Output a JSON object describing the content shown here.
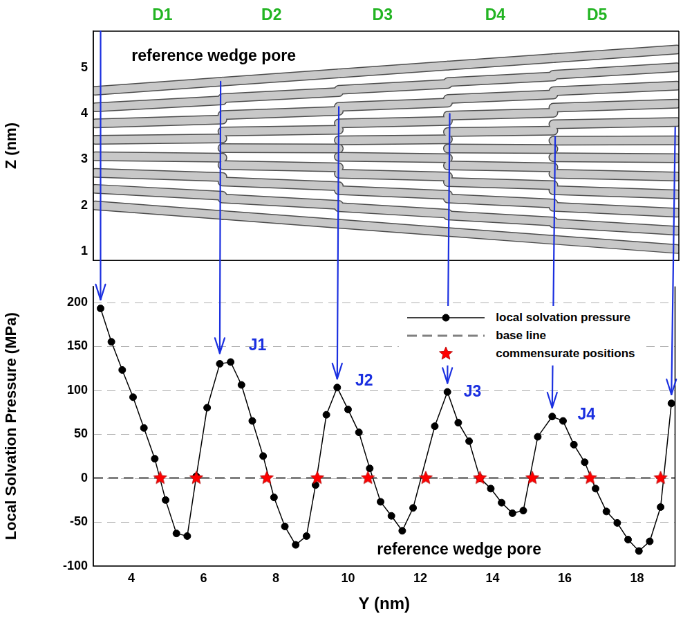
{
  "chart_data": [
    {
      "type": "line",
      "ylabel": "Z (nm)",
      "xlim": [
        2.95,
        19.05
      ],
      "ylim": [
        0.8,
        5.8
      ],
      "yticks": [
        1,
        2,
        3,
        4,
        5
      ],
      "tick_labels": "y",
      "color": "#c8c8c8",
      "annotations": [
        {
          "text": "reference wedge pore",
          "x": 4.0,
          "y": 5.25,
          "color": "#000000"
        }
      ],
      "domain_labels": [
        {
          "text": "D1",
          "x": 4.85,
          "color": "#22b422"
        },
        {
          "text": "D2",
          "x": 7.85,
          "color": "#22b422"
        },
        {
          "text": "D3",
          "x": 10.9,
          "color": "#22b422"
        },
        {
          "text": "D4",
          "x": 14.0,
          "color": "#22b422"
        },
        {
          "text": "D5",
          "x": 16.8,
          "color": "#22b422"
        }
      ],
      "series": [
        {
          "x": [
            3.0,
            6.5
          ],
          "values": [
            2.0,
            1.79
          ]
        },
        {
          "x": [
            3.0,
            6.5
          ],
          "values": [
            2.36,
            2.21
          ]
        },
        {
          "x": [
            3.0,
            6.5
          ],
          "values": [
            2.71,
            2.62
          ]
        },
        {
          "x": [
            3.0,
            6.5
          ],
          "values": [
            3.07,
            3.04
          ]
        },
        {
          "x": [
            3.0,
            6.5
          ],
          "values": [
            3.43,
            3.46
          ]
        },
        {
          "x": [
            3.0,
            6.5
          ],
          "values": [
            3.79,
            3.87
          ]
        },
        {
          "x": [
            3.0,
            6.5
          ],
          "values": [
            4.14,
            4.29
          ]
        },
        {
          "x": [
            3.0,
            6.5
          ],
          "values": [
            4.5,
            4.7
          ]
        },
        {
          "x": [
            6.5,
            9.7
          ],
          "values": [
            1.79,
            1.6
          ]
        },
        {
          "x": [
            6.5,
            9.7
          ],
          "values": [
            2.15,
            2.01
          ]
        },
        {
          "x": [
            6.5,
            9.7
          ],
          "values": [
            2.52,
            2.42
          ]
        },
        {
          "x": [
            6.5,
            9.7
          ],
          "values": [
            2.88,
            2.83
          ]
        },
        {
          "x": [
            6.5,
            9.7
          ],
          "values": [
            3.25,
            3.24
          ]
        },
        {
          "x": [
            6.5,
            9.7
          ],
          "values": [
            3.61,
            3.65
          ]
        },
        {
          "x": [
            6.5,
            9.7
          ],
          "values": [
            3.97,
            4.06
          ]
        },
        {
          "x": [
            6.5,
            9.7
          ],
          "values": [
            4.34,
            4.47
          ]
        },
        {
          "x": [
            6.5,
            9.7
          ],
          "values": [
            4.7,
            4.88
          ]
        },
        {
          "x": [
            9.7,
            12.7
          ],
          "values": [
            1.6,
            1.42
          ]
        },
        {
          "x": [
            9.7,
            12.7
          ],
          "values": [
            1.96,
            1.82
          ]
        },
        {
          "x": [
            9.7,
            12.7
          ],
          "values": [
            2.33,
            2.23
          ]
        },
        {
          "x": [
            9.7,
            12.7
          ],
          "values": [
            2.69,
            2.63
          ]
        },
        {
          "x": [
            9.7,
            12.7
          ],
          "values": [
            3.06,
            3.03
          ]
        },
        {
          "x": [
            9.7,
            12.7
          ],
          "values": [
            3.42,
            3.44
          ]
        },
        {
          "x": [
            9.7,
            12.7
          ],
          "values": [
            3.79,
            3.84
          ]
        },
        {
          "x": [
            9.7,
            12.7
          ],
          "values": [
            4.15,
            4.24
          ]
        },
        {
          "x": [
            9.7,
            12.7
          ],
          "values": [
            4.52,
            4.65
          ]
        },
        {
          "x": [
            9.7,
            12.7
          ],
          "values": [
            4.88,
            5.05
          ]
        },
        {
          "x": [
            12.7,
            15.6
          ],
          "values": [
            1.42,
            1.25
          ]
        },
        {
          "x": [
            12.7,
            15.6
          ],
          "values": [
            1.78,
            1.65
          ]
        },
        {
          "x": [
            12.7,
            15.6
          ],
          "values": [
            2.15,
            2.04
          ]
        },
        {
          "x": [
            12.7,
            15.6
          ],
          "values": [
            2.51,
            2.44
          ]
        },
        {
          "x": [
            12.7,
            15.6
          ],
          "values": [
            2.87,
            2.83
          ]
        },
        {
          "x": [
            12.7,
            15.6
          ],
          "values": [
            3.24,
            3.23
          ]
        },
        {
          "x": [
            12.7,
            15.6
          ],
          "values": [
            3.6,
            3.63
          ]
        },
        {
          "x": [
            12.7,
            15.6
          ],
          "values": [
            3.96,
            4.02
          ]
        },
        {
          "x": [
            12.7,
            15.6
          ],
          "values": [
            4.32,
            4.42
          ]
        },
        {
          "x": [
            12.7,
            15.6
          ],
          "values": [
            4.69,
            4.81
          ]
        },
        {
          "x": [
            12.7,
            15.6
          ],
          "values": [
            5.05,
            5.21
          ]
        },
        {
          "x": [
            15.6,
            19.0
          ],
          "values": [
            1.25,
            1.05
          ]
        },
        {
          "x": [
            15.6,
            19.0
          ],
          "values": [
            1.61,
            1.45
          ]
        },
        {
          "x": [
            15.6,
            19.0
          ],
          "values": [
            1.97,
            1.84
          ]
        },
        {
          "x": [
            15.6,
            19.0
          ],
          "values": [
            2.33,
            2.24
          ]
        },
        {
          "x": [
            15.6,
            19.0
          ],
          "values": [
            2.69,
            2.63
          ]
        },
        {
          "x": [
            15.6,
            19.0
          ],
          "values": [
            3.05,
            3.03
          ]
        },
        {
          "x": [
            15.6,
            19.0
          ],
          "values": [
            3.41,
            3.42
          ]
        },
        {
          "x": [
            15.6,
            19.0
          ],
          "values": [
            3.77,
            3.82
          ]
        },
        {
          "x": [
            15.6,
            19.0
          ],
          "values": [
            4.13,
            4.22
          ]
        },
        {
          "x": [
            15.6,
            19.0
          ],
          "values": [
            4.49,
            4.61
          ]
        },
        {
          "x": [
            15.6,
            19.0
          ],
          "values": [
            4.85,
            5.01
          ]
        },
        {
          "x": [
            15.6,
            19.0
          ],
          "values": [
            5.21,
            5.4
          ]
        }
      ]
    },
    {
      "type": "line",
      "xlabel": "Y (nm)",
      "ylabel": "Local Solvation Pressure (MPa)",
      "xlim": [
        2.95,
        19.05
      ],
      "ylim": [
        -100,
        218
      ],
      "xticks": [
        4,
        6,
        8,
        10,
        12,
        14,
        16,
        18
      ],
      "yticks": [
        -100,
        -50,
        0,
        50,
        100,
        150,
        200
      ],
      "grid": true,
      "legend": "upper right",
      "annotations": [
        {
          "text": "J1",
          "x": 7.25,
          "y": 150,
          "color": "#1a2fe0"
        },
        {
          "text": "J2",
          "x": 10.2,
          "y": 110,
          "color": "#1a2fe0"
        },
        {
          "text": "J3",
          "x": 13.2,
          "y": 98,
          "color": "#1a2fe0"
        },
        {
          "text": "J4",
          "x": 16.35,
          "y": 72,
          "color": "#1a2fe0"
        },
        {
          "text": "reference wedge pore",
          "x": 10.8,
          "y": -82,
          "color": "#000000"
        }
      ],
      "series": [
        {
          "name": "local solvation pressure",
          "color": "#000000",
          "marker": "circle",
          "line_style": "solid",
          "x": [
            3.15,
            3.45,
            3.75,
            4.05,
            4.35,
            4.65,
            4.95,
            5.25,
            5.55,
            5.8,
            6.1,
            6.45,
            6.75,
            7.05,
            7.35,
            7.65,
            7.95,
            8.25,
            8.55,
            8.85,
            9.1,
            9.4,
            9.7,
            10.0,
            10.3,
            10.6,
            10.9,
            11.2,
            11.5,
            11.8,
            12.4,
            12.75,
            13.05,
            13.35,
            13.65,
            13.95,
            14.25,
            14.55,
            14.85,
            15.25,
            15.65,
            15.95,
            16.25,
            16.55,
            16.85,
            17.15,
            17.45,
            17.75,
            18.05,
            18.35,
            18.65,
            18.95
          ],
          "values": [
            193,
            155,
            123,
            92,
            57,
            22,
            -25,
            -63,
            -66,
            2,
            80,
            130,
            132,
            106,
            65,
            25,
            -22,
            -55,
            -76,
            -66,
            -8,
            72,
            103,
            78,
            52,
            11,
            -27,
            -43,
            -60,
            -34,
            59,
            98,
            63,
            42,
            0,
            -12,
            -28,
            -40,
            -37,
            47,
            70,
            65,
            38,
            18,
            -12,
            -38,
            -51,
            -70,
            -83,
            -72,
            -33,
            85
          ]
        },
        {
          "name": "base line",
          "color": "#808080",
          "line_style": "dashed",
          "x": [
            2.95,
            19.05
          ],
          "values": [
            0,
            0
          ]
        },
        {
          "name": "commensurate positions",
          "type": "scatter",
          "color": "#ff0000",
          "marker": "star",
          "x": [
            4.8,
            5.8,
            7.75,
            9.15,
            10.55,
            12.15,
            13.65,
            15.1,
            16.7,
            18.65
          ],
          "values": [
            0,
            0,
            0,
            0,
            0,
            0,
            0,
            0,
            0,
            0
          ]
        }
      ]
    }
  ],
  "arrows": {
    "color": "#1a2fe0",
    "items": [
      {
        "y": 3.15,
        "z_from": 5.8,
        "pressure_to": 203
      },
      {
        "y": 6.45,
        "z_from": 4.7,
        "pressure_to": 142
      },
      {
        "y": 9.7,
        "z_from": 4.15,
        "pressure_to": 113
      },
      {
        "y": 12.75,
        "z_from": 4.0,
        "pressure_to": 108
      },
      {
        "y": 15.65,
        "z_from": 3.5,
        "pressure_to": 80
      },
      {
        "y": 18.95,
        "z_from": 3.7,
        "pressure_to": 95
      }
    ]
  }
}
